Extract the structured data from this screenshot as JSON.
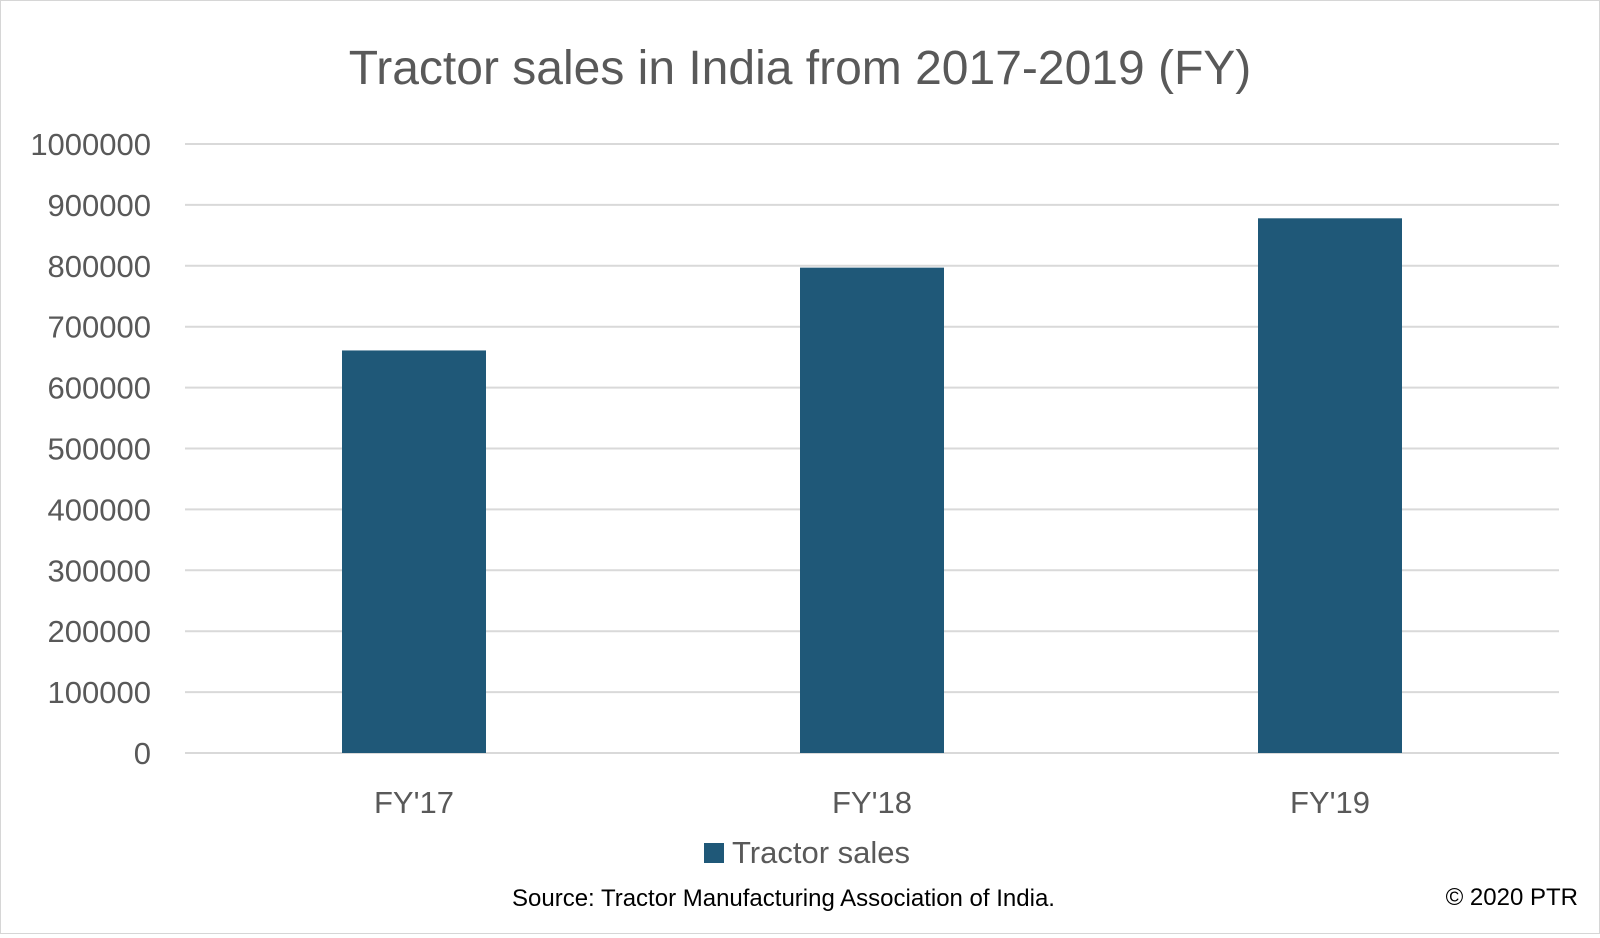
{
  "chart_data": {
    "type": "bar",
    "title": "Tractor sales in India from 2017-2019 (FY)",
    "categories": [
      "FY'17",
      "FY'18",
      "FY'19"
    ],
    "series": [
      {
        "name": "Tractor sales",
        "color": "#1f5878",
        "values": [
          661000,
          797000,
          878000
        ]
      }
    ],
    "ylim": [
      0,
      1000000
    ],
    "yticks": [
      0,
      100000,
      200000,
      300000,
      400000,
      500000,
      600000,
      700000,
      800000,
      900000,
      1000000
    ],
    "ytick_labels": [
      "0",
      "100000",
      "200000",
      "300000",
      "400000",
      "500000",
      "600000",
      "700000",
      "800000",
      "900000",
      "1000000"
    ],
    "xlabel": "",
    "ylabel": "",
    "grid": true,
    "legend_position": "bottom"
  },
  "footer": {
    "source": "Source: Tractor Manufacturing Association of India.",
    "copyright": "© 2020 PTR"
  }
}
